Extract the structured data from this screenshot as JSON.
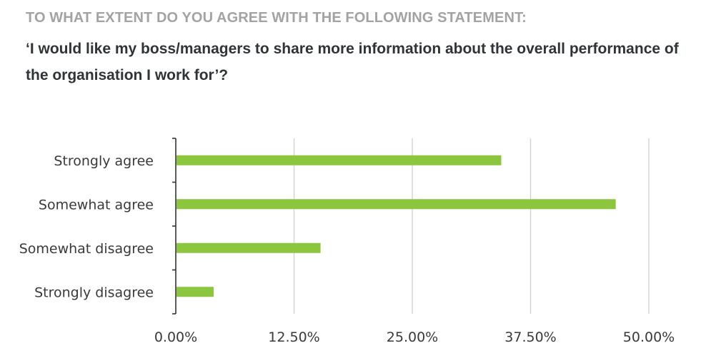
{
  "header": {
    "kicker": "TO WHAT EXTENT DO YOU AGREE WITH THE FOLLOWING STATEMENT:",
    "question": "‘I would like my boss/managers to share more information about the overall performance of the organisation I work for’?"
  },
  "colors": {
    "bar": "#8cc63f",
    "grid": "#d2d2d2",
    "axis": "#333333"
  },
  "chart_data": {
    "type": "bar",
    "orientation": "horizontal",
    "title": "",
    "xlabel": "",
    "ylabel": "",
    "categories": [
      "Strongly agree",
      "Somewhat agree",
      "Somewhat disagree",
      "Strongly disagree"
    ],
    "values": [
      34.4,
      46.5,
      15.3,
      4.0
    ],
    "unit": "%",
    "xlim": [
      0,
      50
    ],
    "ticks": [
      0,
      12.5,
      25,
      37.5,
      50
    ],
    "tick_labels": [
      "0.00%",
      "12.50%",
      "25.00%",
      "37.50%",
      "50.00%"
    ],
    "grid": true,
    "legend": false
  }
}
